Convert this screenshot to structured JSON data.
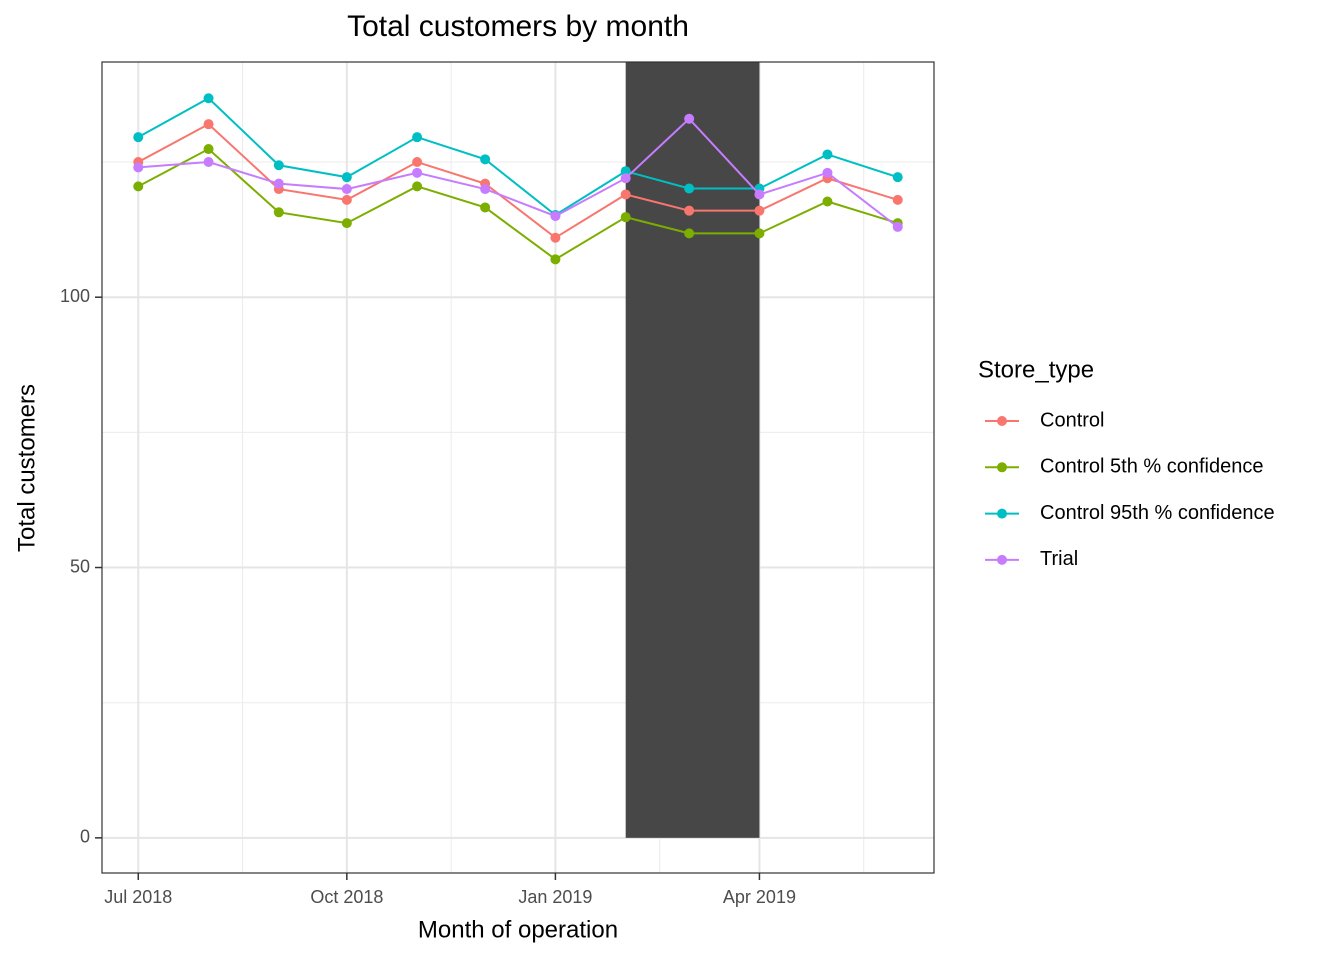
{
  "chart_data": {
    "type": "line",
    "title": "Total customers by month",
    "x_label": "Month of operation",
    "y_label": "Total customers",
    "legend_title": "Store_type",
    "legend_position": "right",
    "grid": true,
    "x": [
      "2018-07",
      "2018-08",
      "2018-09",
      "2018-10",
      "2018-11",
      "2018-12",
      "2019-01",
      "2019-02",
      "2019-03",
      "2019-04",
      "2019-05",
      "2019-06"
    ],
    "xlim": [
      "2018-06-15",
      "2019-06-17"
    ],
    "xticks": [
      {
        "value": "2018-07",
        "label": "Jul 2018"
      },
      {
        "value": "2018-10",
        "label": "Oct 2018"
      },
      {
        "value": "2019-01",
        "label": "Jan 2019"
      },
      {
        "value": "2019-04",
        "label": "Apr 2019"
      }
    ],
    "ylim": [
      -6.5,
      143.5
    ],
    "yticks": [
      0,
      50,
      100
    ],
    "highlight": {
      "start": "2019-02",
      "end": "2019-04",
      "color": "#474747"
    },
    "series": [
      {
        "name": "Control",
        "color": "#F8766D",
        "values": [
          125,
          132,
          120,
          118,
          125,
          121,
          111,
          119,
          116,
          116,
          122,
          118
        ]
      },
      {
        "name": "Control 5th % confidence",
        "color": "#7CAE00",
        "values": [
          120.5,
          127.4,
          115.7,
          113.7,
          120.5,
          116.6,
          107,
          114.8,
          111.8,
          111.8,
          117.7,
          113.7
        ]
      },
      {
        "name": "Control 95th % confidence",
        "color": "#00BFC4",
        "values": [
          129.6,
          136.8,
          124.4,
          122.2,
          129.6,
          125.5,
          115.2,
          123.3,
          120.1,
          120.1,
          126.4,
          122.2
        ]
      },
      {
        "name": "Trial",
        "color": "#C77CFF",
        "values": [
          124,
          125,
          121,
          120,
          123,
          120,
          115,
          122,
          133,
          119,
          123,
          113
        ]
      }
    ]
  }
}
